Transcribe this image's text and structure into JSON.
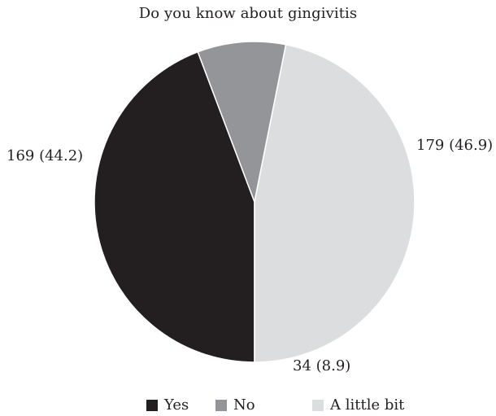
{
  "chart_data": {
    "type": "pie",
    "title": "Do you know about gingivitis",
    "categories": [
      "Yes",
      "No",
      "A little bit"
    ],
    "values": [
      169,
      34,
      179
    ],
    "percentages": [
      44.2,
      8.9,
      46.9
    ],
    "data_labels": [
      "169 (44.2)",
      "34 (8.9)",
      "179 (46.9)"
    ],
    "colors": [
      "#231f20",
      "#939598",
      "#dcddde"
    ],
    "legend_position": "bottom"
  }
}
